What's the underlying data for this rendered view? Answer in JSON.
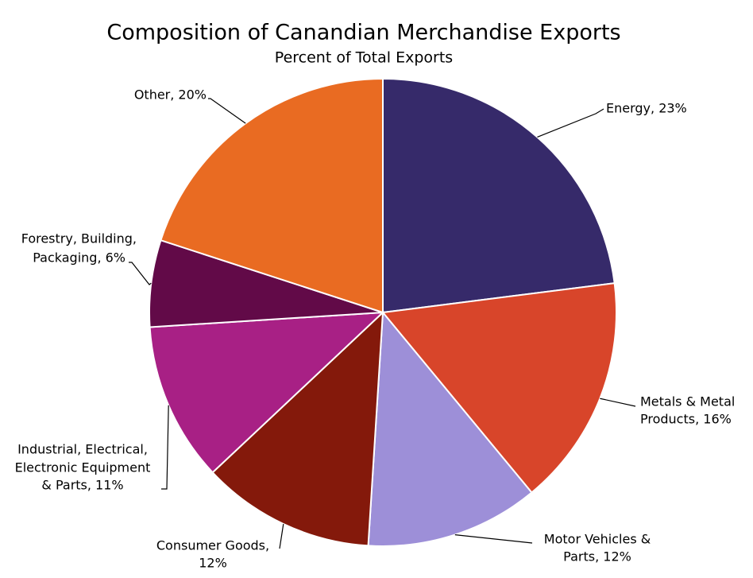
{
  "chart_data": {
    "type": "pie",
    "title": "Composition of Canandian Merchandise Exports",
    "subtitle": "Percent of Total Exports",
    "categories": [
      "Energy",
      "Metals & Metal Products",
      "Motor Vehicles & Parts",
      "Consumer Goods",
      "Industrial, Electrical, Electronic Equipment & Parts",
      "Forestry, Building, Packaging",
      "Other"
    ],
    "values": [
      23,
      16,
      12,
      12,
      11,
      6,
      20
    ],
    "value_labels": [
      "23%",
      "16%",
      "12%",
      "12%",
      "11%",
      "6%",
      "20%"
    ],
    "labels": [
      [
        "Energy, 23%"
      ],
      [
        "Metals & Metal",
        "Products, 16%"
      ],
      [
        "Motor Vehicles &",
        "Parts, 12%"
      ],
      [
        "Consumer Goods,",
        "12%"
      ],
      [
        "Industrial, Electrical,",
        "Electronic Equipment",
        "& Parts, 11%"
      ],
      [
        "Forestry, Building,",
        "Packaging, 6%"
      ],
      [
        "Other, 20%"
      ]
    ],
    "colors": [
      "#362a6a",
      "#d8452a",
      "#9d8fd8",
      "#84190b",
      "#a82085",
      "#620a48",
      "#e96b22"
    ]
  }
}
